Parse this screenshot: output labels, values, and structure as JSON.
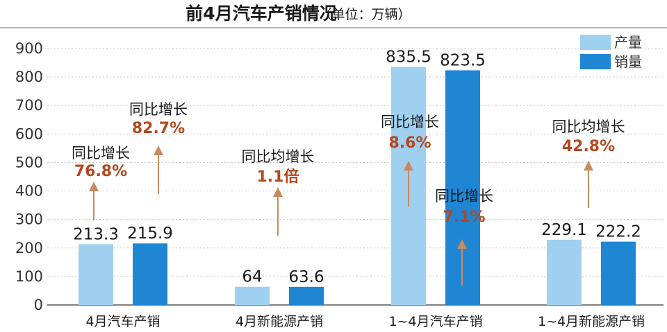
{
  "chart_data": {
    "type": "bar",
    "title": "前4月汽车产销情况",
    "subtitle": "（单位：万辆）",
    "categories": [
      "4月汽车产销",
      "4月新能源产销",
      "1~4月汽车产销",
      "1~4月新能源产销"
    ],
    "series": [
      {
        "name": "产量",
        "values": [
          213.3,
          64,
          835.5,
          229.1
        ],
        "value_labels": [
          "213.3",
          "64",
          "835.5",
          "229.1"
        ],
        "color": "#9fd0f0"
      },
      {
        "name": "销量",
        "values": [
          215.9,
          63.6,
          823.5,
          222.2
        ],
        "value_labels": [
          "215.9",
          "63.6",
          "823.5",
          "222.2"
        ],
        "color": "#1f86d4"
      }
    ],
    "ylim": [
      0,
      900
    ],
    "yticks": [
      "0",
      "100",
      "200",
      "300",
      "400",
      "500",
      "600",
      "700",
      "800",
      "900"
    ],
    "xlabel": "",
    "ylabel": "",
    "grid": true,
    "legend": "top-right",
    "annotations": [
      {
        "label": "同比增长",
        "value": "76.8%",
        "category": 0,
        "series": 0
      },
      {
        "label": "同比增长",
        "value": "82.7%",
        "category": 0,
        "series": 1
      },
      {
        "label": "同比均增长",
        "value": "1.1倍",
        "category": 1,
        "series": null
      },
      {
        "label": "同比增长",
        "value": "8.6%",
        "category": 2,
        "series": 0
      },
      {
        "label": "同比增长",
        "value": "7.1%",
        "category": 2,
        "series": 1
      },
      {
        "label": "同比均增长",
        "value": "42.8%",
        "category": 3,
        "series": null
      }
    ],
    "colors": {
      "arrow": "#c98a5e",
      "annotation_value": "#b5471f",
      "grid": "#c8c8c8"
    }
  }
}
